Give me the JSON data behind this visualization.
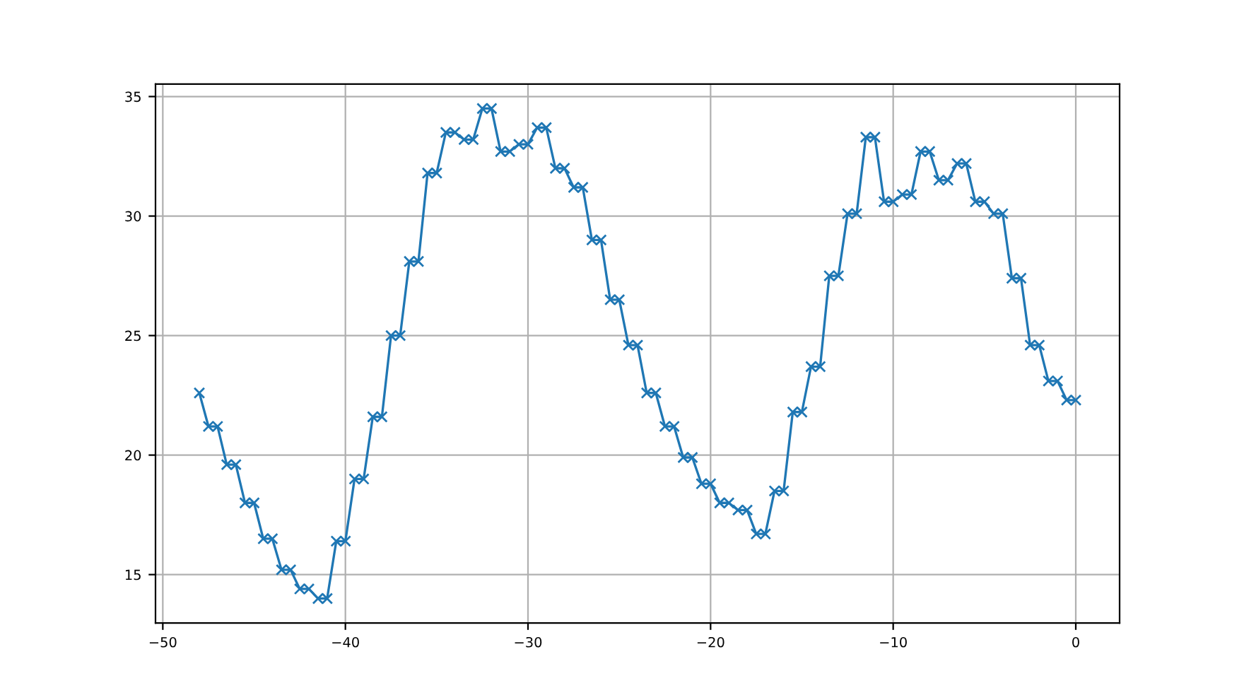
{
  "chart_data": {
    "type": "line",
    "x": [
      -48,
      -47.5,
      -47,
      -46.5,
      -46,
      -45.5,
      -45,
      -44.5,
      -44,
      -43.5,
      -43,
      -42.5,
      -42,
      -41.5,
      -41,
      -40.5,
      -40,
      -39.5,
      -39,
      -38.5,
      -38,
      -37.5,
      -37,
      -36.5,
      -36,
      -35.5,
      -35,
      -34.5,
      -34,
      -33.5,
      -33,
      -32.5,
      -32,
      -31.5,
      -31,
      -30.5,
      -30,
      -29.5,
      -29,
      -28.5,
      -28,
      -27.5,
      -27,
      -26.5,
      -26,
      -25.5,
      -25,
      -24.5,
      -24,
      -23.5,
      -23,
      -22.5,
      -22,
      -21.5,
      -21,
      -20.5,
      -20,
      -19.5,
      -19,
      -18.5,
      -18,
      -17.5,
      -17,
      -16.5,
      -16,
      -15.5,
      -15,
      -14.5,
      -14,
      -13.5,
      -13,
      -12.5,
      -12,
      -11.5,
      -11,
      -10.5,
      -10,
      -9.5,
      -9,
      -8.5,
      -8,
      -7.5,
      -7,
      -6.5,
      -6,
      -5.5,
      -5,
      -4.5,
      -4,
      -3.5,
      -3,
      -2.5,
      -2,
      -1.5,
      -1,
      -0.5,
      0
    ],
    "series": [
      {
        "color": "#1f77b4",
        "values": [
          22.6,
          21.2,
          21.2,
          19.6,
          19.6,
          18.0,
          18.0,
          16.5,
          16.5,
          15.2,
          15.2,
          14.4,
          14.4,
          14.0,
          14.0,
          16.4,
          16.4,
          19.0,
          19.0,
          21.6,
          21.6,
          25.0,
          25.0,
          28.1,
          28.1,
          31.8,
          31.8,
          33.5,
          33.5,
          33.2,
          33.2,
          34.5,
          34.5,
          32.7,
          32.7,
          33.0,
          33.0,
          33.7,
          33.7,
          32.0,
          32.0,
          31.2,
          31.2,
          29.0,
          29.0,
          26.5,
          26.5,
          24.6,
          24.6,
          22.6,
          22.6,
          21.2,
          21.2,
          19.9,
          19.9,
          18.8,
          18.8,
          18.0,
          18.0,
          17.7,
          17.7,
          16.7,
          16.7,
          18.5,
          18.5,
          21.8,
          21.8,
          23.7,
          23.7,
          27.5,
          27.5,
          30.1,
          30.1,
          33.3,
          33.3,
          30.6,
          30.6,
          30.9,
          30.9,
          32.7,
          32.7,
          31.5,
          31.5,
          32.2,
          32.2,
          30.6,
          30.6,
          30.1,
          30.1,
          27.4,
          27.4,
          24.6,
          24.6,
          23.1,
          23.1,
          22.3,
          22.3
        ]
      }
    ],
    "xlim": [
      -50.4,
      2.4
    ],
    "ylim": [
      12.975,
      35.525
    ],
    "xticks": [
      {
        "value": -50,
        "label": "−50"
      },
      {
        "value": -40,
        "label": "−40"
      },
      {
        "value": -30,
        "label": "−30"
      },
      {
        "value": -20,
        "label": "−20"
      },
      {
        "value": -10,
        "label": "−10"
      },
      0
    ],
    "yticks": [
      15,
      20,
      25,
      30,
      35
    ],
    "grid": true,
    "marker": "cross",
    "line_style": "solid"
  }
}
